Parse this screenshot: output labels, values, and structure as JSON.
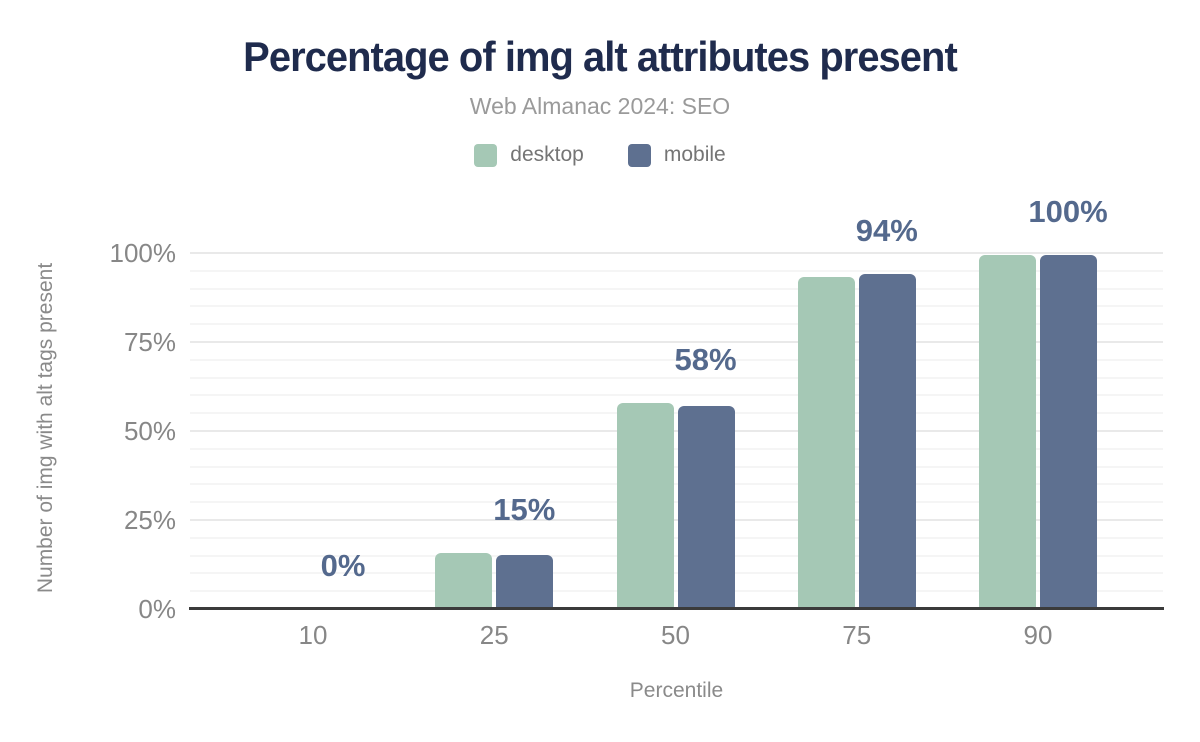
{
  "chart_data": {
    "type": "bar",
    "title": "Percentage of img alt attributes present",
    "subtitle": "Web Almanac 2024: SEO",
    "xlabel": "Percentile",
    "ylabel": "Number of img with alt tags present",
    "categories": [
      "10",
      "25",
      "50",
      "75",
      "90"
    ],
    "series": [
      {
        "name": "desktop",
        "color": "#a5c8b5",
        "values": [
          0,
          15.8,
          57.8,
          93.3,
          99.4
        ]
      },
      {
        "name": "mobile",
        "color": "#5e7090",
        "values": [
          0,
          15.3,
          57.1,
          94.0,
          99.5
        ]
      }
    ],
    "data_labels": [
      "0%",
      "15%",
      "58%",
      "94%",
      "100%"
    ],
    "y_ticks": [
      {
        "value": 0,
        "label": "0%"
      },
      {
        "value": 25,
        "label": "25%"
      },
      {
        "value": 50,
        "label": "50%"
      },
      {
        "value": 75,
        "label": "75%"
      },
      {
        "value": 100,
        "label": "100%"
      }
    ],
    "ylim": [
      0,
      100
    ],
    "grid": {
      "on": true,
      "minor_step": 5,
      "major_step": 25
    },
    "legend_position": "top",
    "colors": {
      "title": "#1f2b4d",
      "subtitle": "#9a9a9a",
      "legend_text": "#757575",
      "data_label": "#54698d",
      "axis_text": "#878787",
      "axis_line": "#3b3b3b",
      "grid_minor": "#f5f5f5",
      "grid_major": "#e9e9e9"
    }
  }
}
